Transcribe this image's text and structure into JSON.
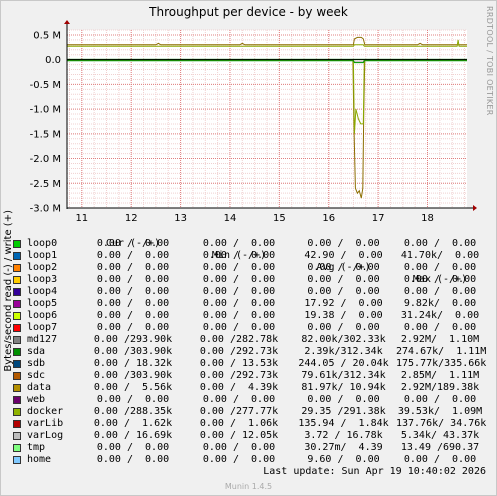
{
  "chart_data": {
    "type": "line",
    "title": "Throughput per device - by week",
    "ylabel": "Bytes/second read (-) / write (+)",
    "side_label": "RRDTOOL / TOBI OETIKER",
    "ylim": [
      -3000000,
      600000
    ],
    "y_ticks": [
      {
        "value": 500000,
        "label": "0.5 M"
      },
      {
        "value": 0,
        "label": "0.0"
      },
      {
        "value": -500000,
        "label": "-0.5 M"
      },
      {
        "value": -1000000,
        "label": "-1.0 M"
      },
      {
        "value": -1500000,
        "label": "-1.5 M"
      },
      {
        "value": -2000000,
        "label": "-2.0 M"
      },
      {
        "value": -2500000,
        "label": "-2.5 M"
      },
      {
        "value": -3000000,
        "label": "-3.0 M"
      }
    ],
    "xlim": [
      10.7,
      18.8
    ],
    "x_ticks": [
      {
        "value": 11,
        "label": "11"
      },
      {
        "value": 12,
        "label": "12"
      },
      {
        "value": 13,
        "label": "13"
      },
      {
        "value": 14,
        "label": "14"
      },
      {
        "value": 15,
        "label": "15"
      },
      {
        "value": 16,
        "label": "16"
      },
      {
        "value": 17,
        "label": "17"
      },
      {
        "value": 18,
        "label": "18"
      }
    ],
    "series": [
      {
        "name": "data",
        "color": "#8c6d00",
        "read": [
          [
            10.7,
            0
          ],
          [
            16.49,
            0
          ],
          [
            16.51,
            -1300000
          ],
          [
            16.54,
            -2600000
          ],
          [
            16.58,
            -2700000
          ],
          [
            16.62,
            -2650000
          ],
          [
            16.66,
            -2800000
          ],
          [
            16.69,
            -2600000
          ],
          [
            16.71,
            -1000000
          ],
          [
            16.73,
            0
          ],
          [
            18.8,
            0
          ]
        ],
        "write": [
          [
            10.7,
            300000
          ],
          [
            12.5,
            300000
          ],
          [
            12.55,
            330000
          ],
          [
            12.6,
            300000
          ],
          [
            14.2,
            300000
          ],
          [
            14.25,
            330000
          ],
          [
            14.3,
            300000
          ],
          [
            16.5,
            300000
          ],
          [
            16.52,
            420000
          ],
          [
            16.58,
            450000
          ],
          [
            16.66,
            450000
          ],
          [
            16.7,
            420000
          ],
          [
            16.73,
            300000
          ],
          [
            17.8,
            300000
          ],
          [
            17.85,
            330000
          ],
          [
            17.9,
            300000
          ],
          [
            18.8,
            300000
          ]
        ]
      },
      {
        "name": "md127",
        "color": "#707070",
        "read": [
          [
            10.7,
            -10000
          ],
          [
            16.5,
            -10000
          ],
          [
            16.52,
            -50000
          ],
          [
            16.7,
            -50000
          ],
          [
            16.72,
            -10000
          ],
          [
            18.8,
            -10000
          ]
        ],
        "write": [
          [
            10.7,
            5000
          ],
          [
            18.8,
            5000
          ]
        ]
      },
      {
        "name": "docker",
        "color": "#8ba800",
        "read": [
          [
            10.7,
            -5000
          ],
          [
            16.5,
            -5000
          ],
          [
            16.52,
            -1500000
          ],
          [
            16.55,
            -1000000
          ],
          [
            16.6,
            -1200000
          ],
          [
            16.65,
            -1300000
          ],
          [
            16.7,
            -1300000
          ],
          [
            16.72,
            -5000
          ],
          [
            18.8,
            -5000
          ]
        ],
        "write": [
          [
            10.7,
            270000
          ],
          [
            16.5,
            270000
          ],
          [
            16.52,
            300000
          ],
          [
            16.7,
            300000
          ],
          [
            16.72,
            270000
          ],
          [
            18.6,
            270000
          ],
          [
            18.62,
            400000
          ],
          [
            18.64,
            270000
          ],
          [
            18.8,
            270000
          ]
        ]
      },
      {
        "name": "sda",
        "color": "#00a000",
        "read": [
          [
            10.7,
            -20000
          ],
          [
            16.5,
            -20000
          ],
          [
            16.52,
            -60000
          ],
          [
            16.7,
            -60000
          ],
          [
            16.72,
            -20000
          ],
          [
            18.8,
            -20000
          ]
        ],
        "write": [
          [
            10.7,
            5000
          ],
          [
            18.8,
            5000
          ]
        ]
      }
    ],
    "legend_headers": [
      "Cur (-/+)",
      "Min (-/+)",
      "Avg (-/+)",
      "Max (-/+)"
    ],
    "legend": [
      {
        "name": "loop0",
        "color": "#00cc00",
        "cur": "0.00 /  0.00",
        "min": "0.00 /  0.00",
        "avg": "0.00 /  0.00",
        "max": "0.00 /  0.00"
      },
      {
        "name": "loop1",
        "color": "#0066b3",
        "cur": "0.00 /  0.00",
        "min": "0.00 /  0.00",
        "avg": "42.90 /  0.00",
        "max": "41.70k/  0.00"
      },
      {
        "name": "loop2",
        "color": "#ff8000",
        "cur": "0.00 /  0.00",
        "min": "0.00 /  0.00",
        "avg": "0.00 /  0.00",
        "max": "0.00 /  0.00"
      },
      {
        "name": "loop3",
        "color": "#ffcc00",
        "cur": "0.00 /  0.00",
        "min": "0.00 /  0.00",
        "avg": "0.00 /  0.00",
        "max": "0.00 /  0.00"
      },
      {
        "name": "loop4",
        "color": "#330099",
        "cur": "0.00 /  0.00",
        "min": "0.00 /  0.00",
        "avg": "0.00 /  0.00",
        "max": "0.00 /  0.00"
      },
      {
        "name": "loop5",
        "color": "#990099",
        "cur": "0.00 /  0.00",
        "min": "0.00 /  0.00",
        "avg": "17.92 /  0.00",
        "max": "9.82k/  0.00"
      },
      {
        "name": "loop6",
        "color": "#ccff00",
        "cur": "0.00 /  0.00",
        "min": "0.00 /  0.00",
        "avg": "19.38 /  0.00",
        "max": "31.24k/  0.00"
      },
      {
        "name": "loop7",
        "color": "#ff0000",
        "cur": "0.00 /  0.00",
        "min": "0.00 /  0.00",
        "avg": "0.00 /  0.00",
        "max": "0.00 /  0.00"
      },
      {
        "name": "md127",
        "color": "#808080",
        "cur": "0.00 /293.90k",
        "min": "0.00 /282.78k",
        "avg": "82.00k/302.33k",
        "max": "2.92M/  1.10M"
      },
      {
        "name": "sda",
        "color": "#008f00",
        "cur": "0.00 /303.90k",
        "min": "0.00 /292.73k",
        "avg": "2.39k/312.34k",
        "max": "274.67k/  1.11M"
      },
      {
        "name": "sdb",
        "color": "#00487d",
        "cur": "0.00 / 18.32k",
        "min": "0.00 / 13.53k",
        "avg": "244.05 / 20.04k",
        "max": "175.77k/335.66k"
      },
      {
        "name": "sdc",
        "color": "#b35a00",
        "cur": "0.00 /303.90k",
        "min": "0.00 /292.73k",
        "avg": "79.61k/312.34k",
        "max": "2.85M/  1.11M"
      },
      {
        "name": "data",
        "color": "#b38f00",
        "cur": "0.00 /  5.56k",
        "min": "0.00 /  4.39k",
        "avg": "81.97k/ 10.94k",
        "max": "2.92M/189.38k"
      },
      {
        "name": "web",
        "color": "#6b006b",
        "cur": "0.00 /  0.00",
        "min": "0.00 /  0.00",
        "avg": "0.00 /  0.00",
        "max": "0.00 /  0.00"
      },
      {
        "name": "docker",
        "color": "#8fb300",
        "cur": "0.00 /288.35k",
        "min": "0.00 /277.77k",
        "avg": "29.35 /291.38k",
        "max": "39.53k/  1.09M"
      },
      {
        "name": "varLib",
        "color": "#b30000",
        "cur": "0.00 /  1.62k",
        "min": "0.00 /  1.06k",
        "avg": "135.94 /  1.84k",
        "max": "137.76k/ 34.76k"
      },
      {
        "name": "varLog",
        "color": "#bebebe",
        "cur": "0.00 / 16.69k",
        "min": "0.00 / 12.05k",
        "avg": "3.72 / 16.78k",
        "max": "5.34k/ 43.37k"
      },
      {
        "name": "tmp",
        "color": "#80ff80",
        "cur": "0.00 /  0.00",
        "min": "0.00 /  0.00",
        "avg": "30.27m/  4.39",
        "max": "13.49 /690.37"
      },
      {
        "name": "home",
        "color": "#80c9ff",
        "cur": "0.00 /  0.00",
        "min": "0.00 /  0.00",
        "avg": "9.60 /  0.00",
        "max": "0.00 /  0.00"
      }
    ],
    "last_update": "Last update:  Sun Apr 19 10:40:02 2026",
    "footer": "Munin 1.4.5"
  }
}
